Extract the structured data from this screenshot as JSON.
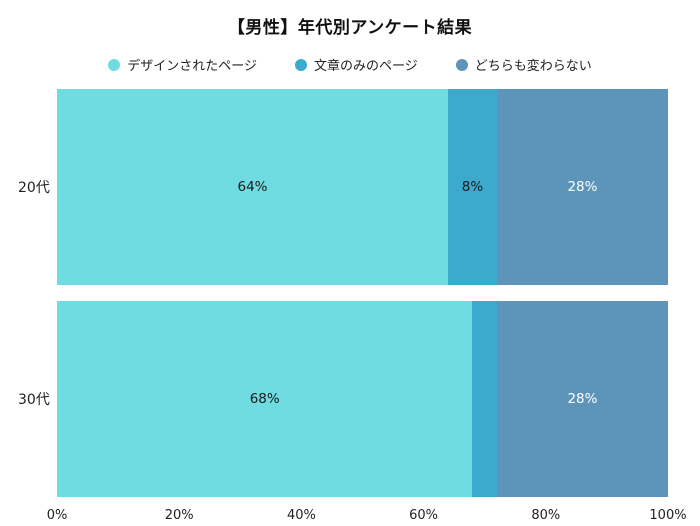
{
  "chart_data": {
    "type": "bar",
    "orientation": "horizontal",
    "stacked": true,
    "percent_total": 100,
    "title": "【男性】年代別アンケート結果",
    "legend_position": "top",
    "grid": false,
    "categories": [
      "20代",
      "30代"
    ],
    "series": [
      {
        "name": "デザインされたページ",
        "color": "#6edce1",
        "label_color": "#1a1a1a",
        "values": [
          64,
          68
        ],
        "labels": [
          "64%",
          "68%"
        ]
      },
      {
        "name": "文章のみのページ",
        "color": "#3caacd",
        "label_color": "#1a1a1a",
        "values": [
          8,
          4
        ],
        "labels": [
          "8%",
          ""
        ]
      },
      {
        "name": "どちらも変わらない",
        "color": "#5d95ba",
        "label_color": "#ffffff",
        "values": [
          28,
          28
        ],
        "labels": [
          "28%",
          "28%"
        ]
      }
    ],
    "xlabel": "",
    "ylabel": "",
    "xlim": [
      0,
      100
    ],
    "x_ticks": [
      "0%",
      "20%",
      "40%",
      "60%",
      "80%",
      "100%"
    ]
  }
}
